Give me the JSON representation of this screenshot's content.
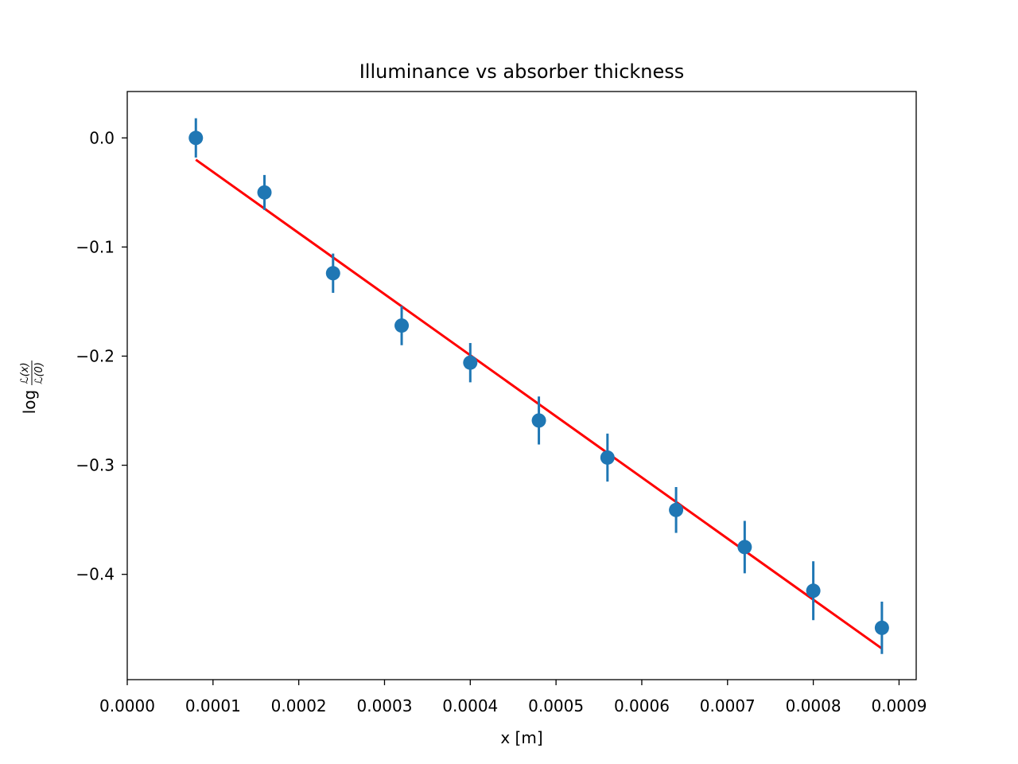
{
  "chart_data": {
    "type": "scatter",
    "title": "Illuminance vs absorber thickness",
    "xlabel": "x [m]",
    "ylabel": {
      "prefix": "log",
      "numerator": "ℒ(x)",
      "denominator": "ℒ(0)"
    },
    "xlim": [
      0.0,
      0.00092
    ],
    "ylim": [
      -0.4965,
      0.0425
    ],
    "x_ticks": [
      0.0,
      0.0001,
      0.0002,
      0.0003,
      0.0004,
      0.0005,
      0.0006,
      0.0007,
      0.0008,
      0.0009
    ],
    "x_tick_labels": [
      "0.0000",
      "0.0001",
      "0.0002",
      "0.0003",
      "0.0004",
      "0.0005",
      "0.0006",
      "0.0007",
      "0.0008",
      "0.0009"
    ],
    "y_ticks": [
      0.0,
      -0.1,
      -0.2,
      -0.3,
      -0.4
    ],
    "y_tick_labels": [
      "0.0",
      "−0.1",
      "−0.2",
      "−0.3",
      "−0.4"
    ],
    "grid": false,
    "legend": "none",
    "series": [
      {
        "kind": "errorbar",
        "color": "#1f77b4",
        "x": [
          8e-05,
          0.00016,
          0.00024,
          0.00032,
          0.0004,
          0.00048,
          0.00056,
          0.00064,
          0.00072,
          0.0008,
          0.00088
        ],
        "y": [
          0.0,
          -0.05,
          -0.124,
          -0.172,
          -0.206,
          -0.259,
          -0.293,
          -0.341,
          -0.375,
          -0.415,
          -0.449
        ],
        "yerr": [
          0.018,
          0.016,
          0.018,
          0.018,
          0.018,
          0.022,
          0.022,
          0.021,
          0.024,
          0.027,
          0.024
        ]
      },
      {
        "kind": "line",
        "color": "#ff0000",
        "x": [
          8e-05,
          0.00088
        ],
        "y": [
          -0.02,
          -0.468
        ]
      }
    ]
  }
}
